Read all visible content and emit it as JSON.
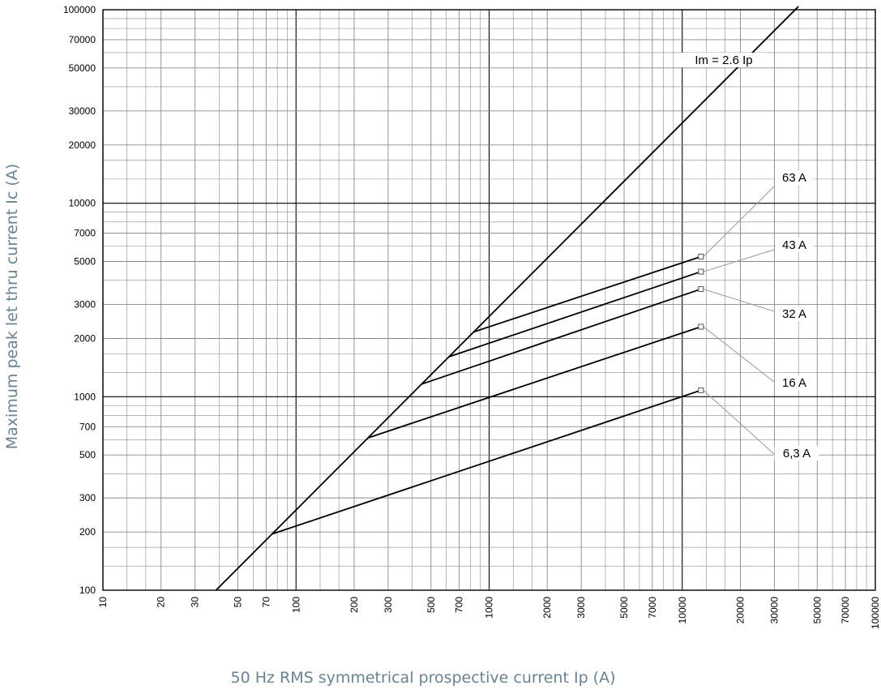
{
  "chart_data": {
    "type": "line",
    "xscale": "log",
    "yscale": "log",
    "xlim": [
      10,
      100000
    ],
    "ylim": [
      100,
      100000
    ],
    "grid": true,
    "xlabel": "50 Hz RMS symmetrical prospective current Ip (A)",
    "ylabel": "Maximum peak let thru current Ic (A)",
    "x_ticks": [
      "10",
      "20",
      "30",
      "50",
      "70",
      "100",
      "200",
      "300",
      "500",
      "700",
      "1000",
      "2000",
      "3000",
      "5000",
      "7000",
      "10000",
      "20000",
      "30000",
      "50000",
      "70000",
      "100000"
    ],
    "y_ticks": [
      "100",
      "200",
      "300",
      "500",
      "700",
      "1000",
      "2000",
      "3000",
      "5000",
      "7000",
      "10000",
      "20000",
      "30000",
      "50000",
      "70000",
      "100000"
    ],
    "series": [
      {
        "name": "Im = 2.6 Ip",
        "x": [
          38.5,
          40000
        ],
        "y": [
          100,
          104000
        ]
      },
      {
        "name": "63 A",
        "x": [
          830,
          12500
        ],
        "y": [
          2160,
          5300
        ]
      },
      {
        "name": "43 A",
        "x": [
          620,
          12500
        ],
        "y": [
          1610,
          4430
        ]
      },
      {
        "name": "32 A",
        "x": [
          445,
          12500
        ],
        "y": [
          1160,
          3600
        ]
      },
      {
        "name": "16 A",
        "x": [
          235,
          12500
        ],
        "y": [
          612,
          2300
        ]
      },
      {
        "name": "6,3 A",
        "x": [
          75,
          12500
        ],
        "y": [
          195,
          1080
        ]
      }
    ],
    "labels": [
      {
        "text": "Im = 2.6 Ip",
        "series": "Im = 2.6 Ip"
      },
      {
        "text": "63 A",
        "series": "63 A"
      },
      {
        "text": "43 A",
        "series": "43 A"
      },
      {
        "text": "32 A",
        "series": "32 A"
      },
      {
        "text": "16 A",
        "series": "16 A"
      },
      {
        "text": "6,3 A",
        "series": "6,3 A"
      }
    ]
  }
}
